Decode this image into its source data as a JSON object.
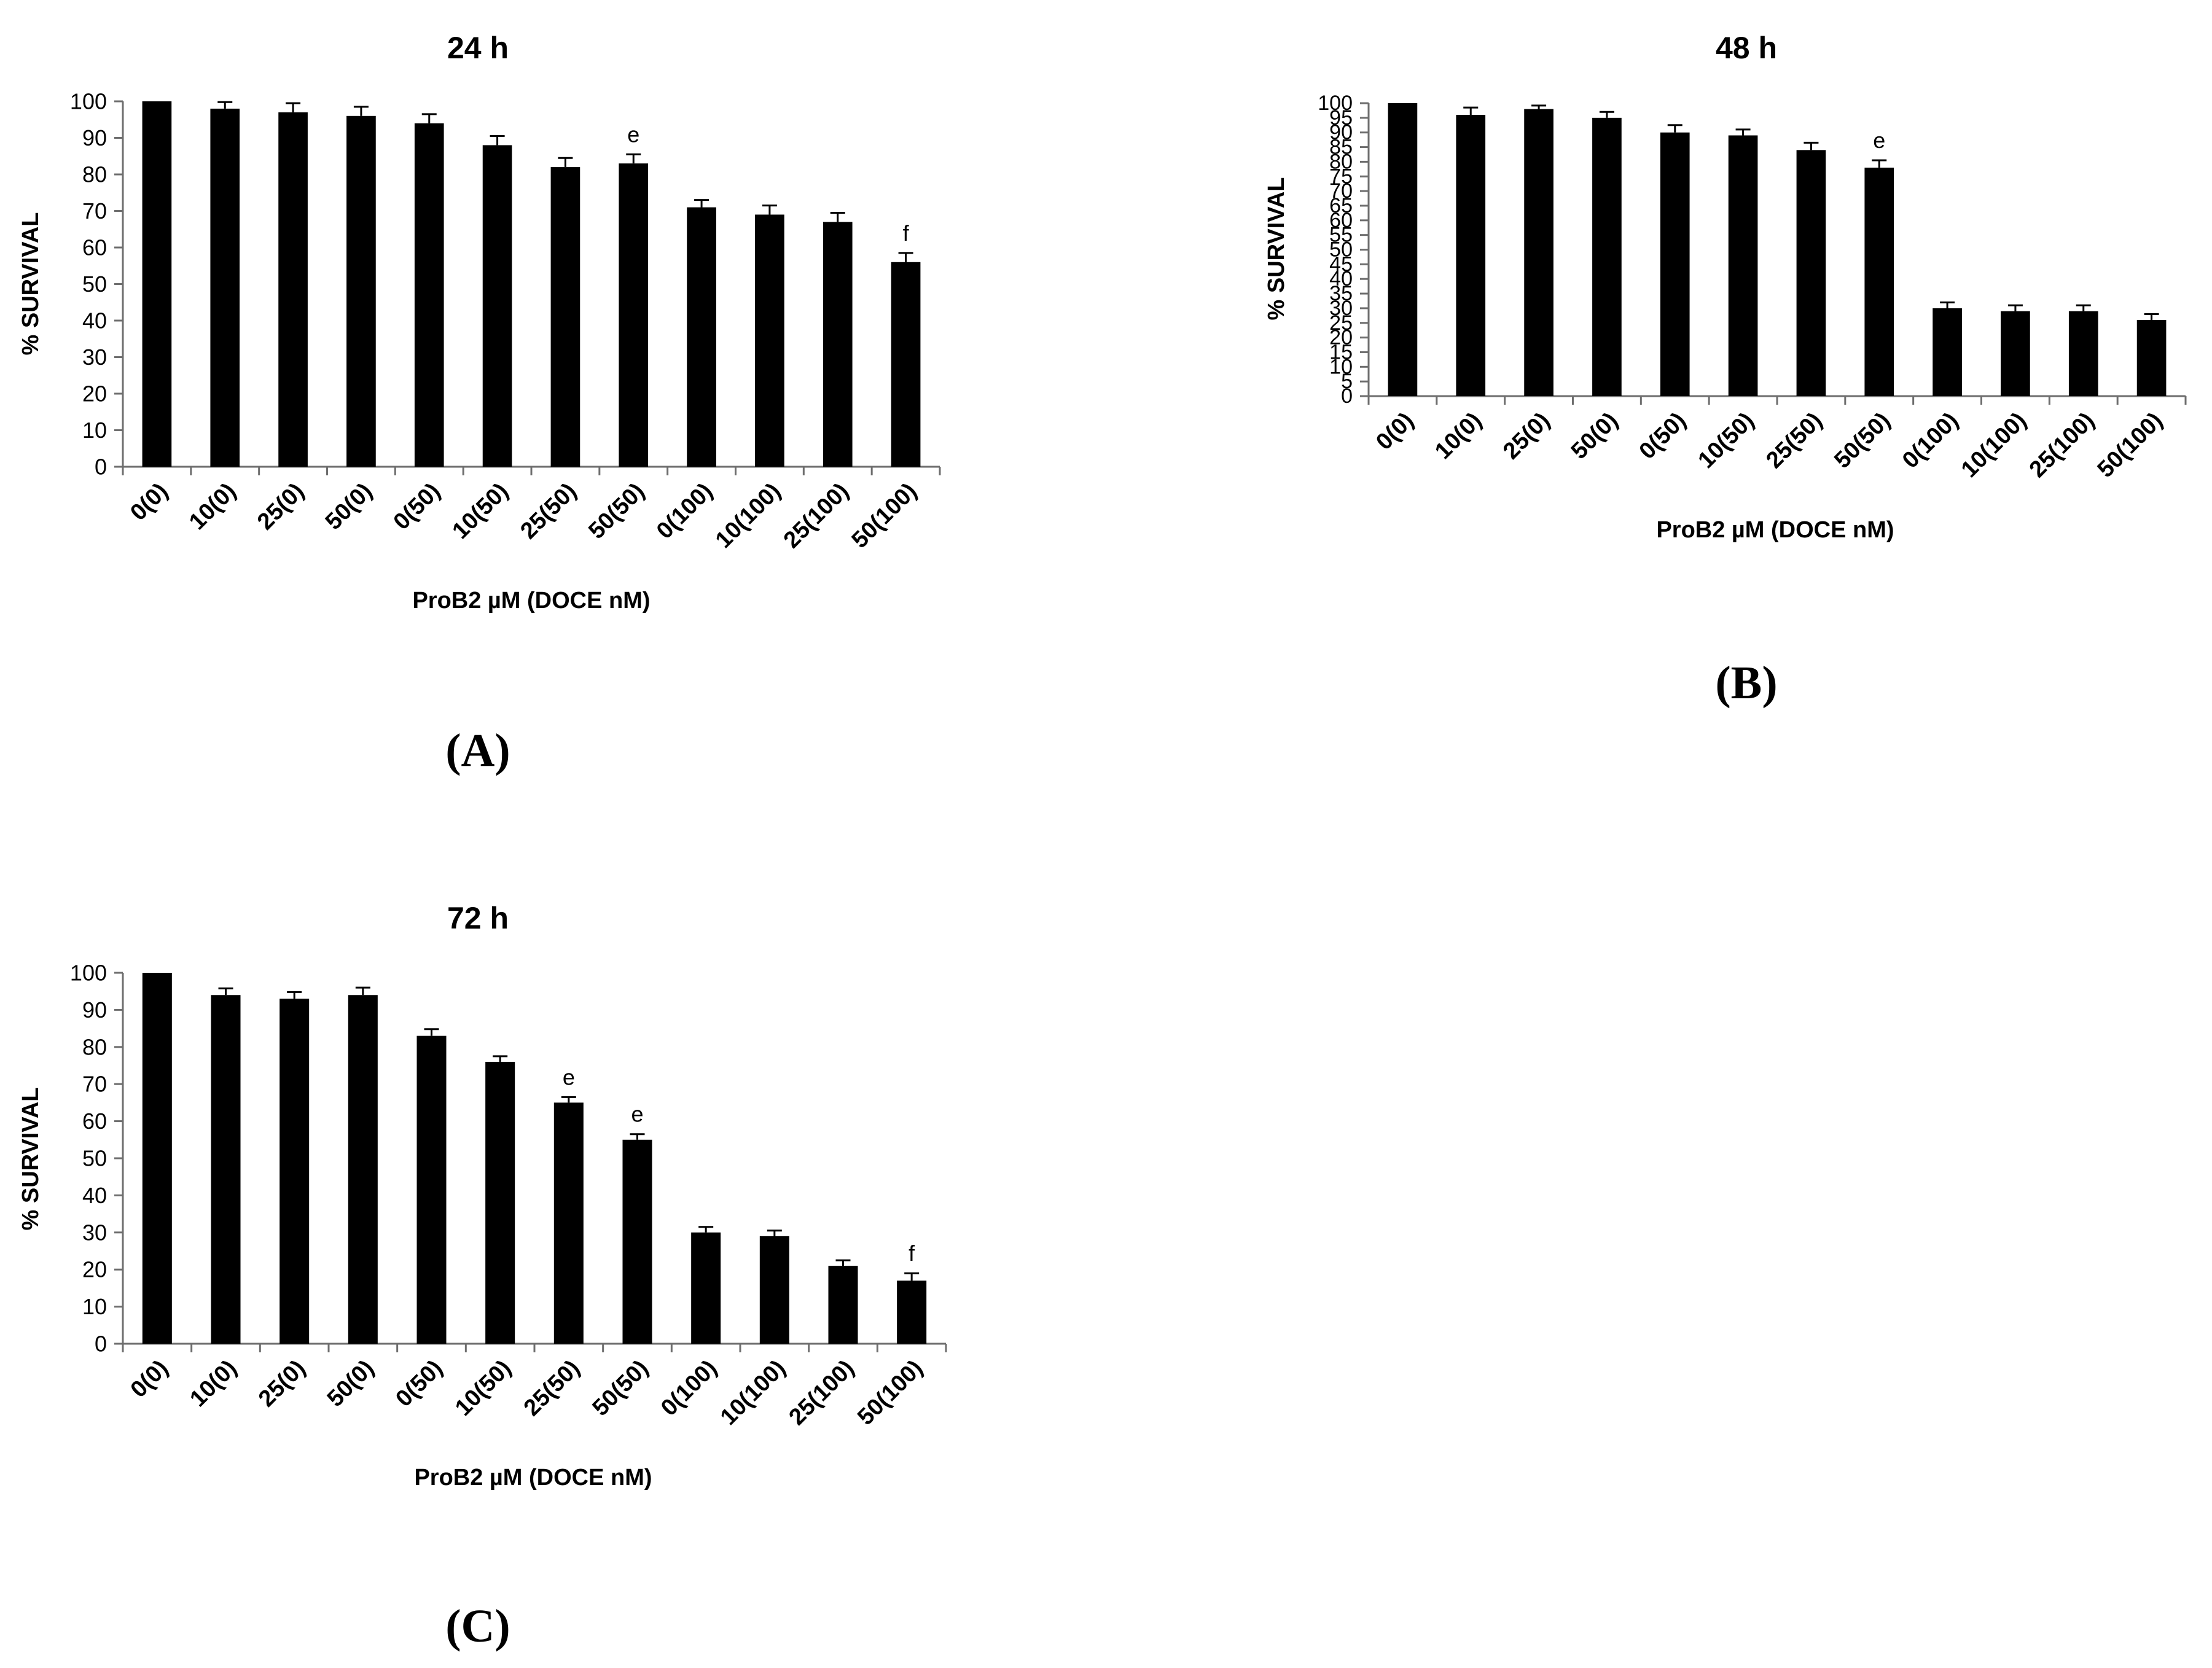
{
  "panels": [
    {
      "letter": "(A)"
    },
    {
      "letter": "(B)"
    },
    {
      "letter": "(C)"
    }
  ],
  "chart_data": [
    {
      "type": "bar",
      "title": "24 h",
      "xlabel": "ProB2 µM (DOCE nM)",
      "ylabel": "% SURVIVAL",
      "ylim": [
        0,
        100
      ],
      "yticks": [
        0,
        10,
        20,
        30,
        40,
        50,
        60,
        70,
        80,
        90,
        100
      ],
      "categories": [
        "0(0)",
        "10(0)",
        "25(0)",
        "50(0)",
        "0(50)",
        "10(50)",
        "25(50)",
        "50(50)",
        "0(100)",
        "10(100)",
        "25(100)",
        "50(100)"
      ],
      "values": [
        100,
        98,
        97,
        96,
        94,
        88,
        82,
        83,
        71,
        69,
        67,
        56
      ],
      "errors": [
        0,
        1.8,
        2.5,
        2.5,
        2.5,
        2.5,
        2.5,
        2.5,
        2.0,
        2.5,
        2.5,
        2.5
      ],
      "annotations": [
        "",
        "",
        "",
        "",
        "",
        "",
        "",
        "e",
        "",
        "",
        "",
        "f"
      ],
      "bar_color": "#000000",
      "grid": false,
      "legend": "none"
    },
    {
      "type": "bar",
      "title": "48 h",
      "xlabel": "ProB2 µM (DOCE nM)",
      "ylabel": "% SURVIVAL",
      "ylim": [
        0,
        100
      ],
      "yticks": [
        0,
        5,
        10,
        15,
        20,
        25,
        30,
        35,
        40,
        45,
        50,
        55,
        60,
        65,
        70,
        75,
        80,
        85,
        90,
        95,
        100
      ],
      "categories": [
        "0(0)",
        "10(0)",
        "25(0)",
        "50(0)",
        "0(50)",
        "10(50)",
        "25(50)",
        "50(50)",
        "0(100)",
        "10(100)",
        "25(100)",
        "50(100)"
      ],
      "values": [
        100,
        96,
        98,
        95,
        90,
        89,
        84,
        78,
        30,
        29,
        29,
        26
      ],
      "errors": [
        0,
        2.5,
        1.2,
        2.0,
        2.5,
        2.0,
        2.5,
        2.5,
        2.0,
        2.0,
        2.0,
        2.0
      ],
      "annotations": [
        "",
        "",
        "",
        "",
        "",
        "",
        "",
        "e",
        "",
        "",
        "",
        ""
      ],
      "bar_color": "#000000",
      "grid": false,
      "legend": "none"
    },
    {
      "type": "bar",
      "title": "72 h",
      "xlabel": "ProB2 µM (DOCE nM)",
      "ylabel": "% SURVIVAL",
      "ylim": [
        0,
        100
      ],
      "yticks": [
        0,
        10,
        20,
        30,
        40,
        50,
        60,
        70,
        80,
        90,
        100
      ],
      "categories": [
        "0(0)",
        "10(0)",
        "25(0)",
        "50(0)",
        "0(50)",
        "10(50)",
        "25(50)",
        "50(50)",
        "0(100)",
        "10(100)",
        "25(100)",
        "50(100)"
      ],
      "values": [
        100,
        94,
        93,
        94,
        83,
        76,
        65,
        55,
        30,
        29,
        21,
        17
      ],
      "errors": [
        0,
        1.8,
        1.8,
        2.0,
        1.8,
        1.5,
        1.5,
        1.5,
        1.5,
        1.5,
        1.5,
        2.0
      ],
      "annotations": [
        "",
        "",
        "",
        "",
        "",
        "",
        "e",
        "e",
        "",
        "",
        "",
        "f"
      ],
      "bar_color": "#000000",
      "grid": false,
      "legend": "none"
    }
  ]
}
